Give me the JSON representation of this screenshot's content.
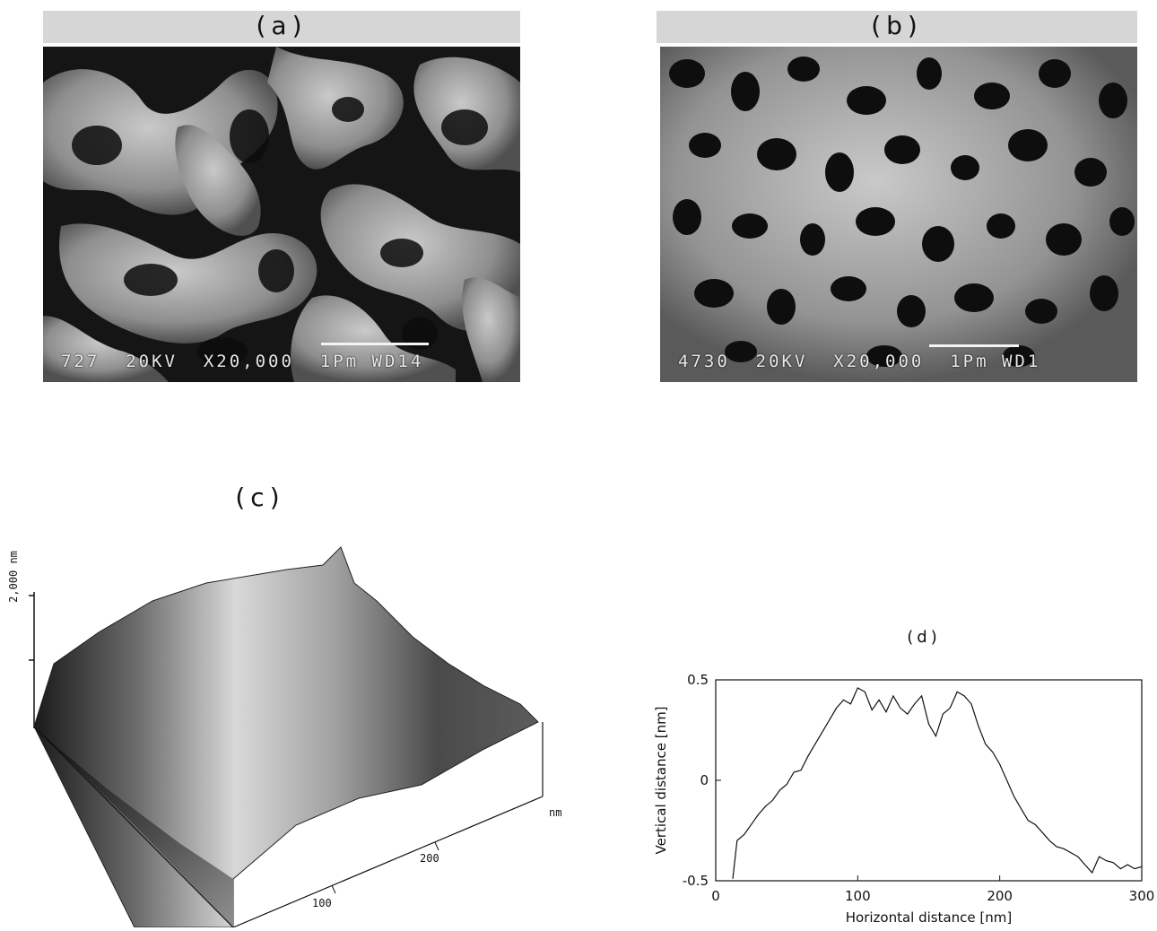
{
  "figure": {
    "panel_a": {
      "label": "(a)",
      "sem_caption": "727  20KV  X20,000  1Pm WD14"
    },
    "panel_b": {
      "label": "(b)",
      "sem_caption": "4730  20KV  X20,000  1Pm WD1"
    },
    "panel_c": {
      "label": "(c)",
      "z_label": "2,000 nm",
      "x_unit": "nm",
      "x_ticks": [
        "100",
        "200"
      ]
    },
    "panel_d": {
      "label": "(d)"
    }
  },
  "chart_data": {
    "type": "line",
    "xlabel": "Horizontal distance [nm]",
    "ylabel": "Vertical distance [nm]",
    "xlim": [
      0,
      300
    ],
    "ylim": [
      -0.5,
      0.5
    ],
    "xticks": [
      0,
      100,
      200,
      300
    ],
    "yticks": [
      -0.5,
      0,
      0.5
    ],
    "grid": false,
    "series": [
      {
        "x": [
          12,
          15,
          20,
          25,
          30,
          35,
          40,
          45,
          50,
          55,
          60,
          65,
          70,
          75,
          80,
          85,
          90,
          95,
          100,
          105,
          110,
          115,
          120,
          125,
          130,
          135,
          140,
          145,
          150,
          155,
          160,
          165,
          170,
          175,
          180,
          185,
          190,
          195,
          200,
          205,
          210,
          215,
          220,
          225,
          230,
          235,
          240,
          245,
          250,
          255,
          260,
          265,
          270,
          275,
          280,
          285,
          290,
          295,
          300
        ],
        "y": [
          -0.49,
          -0.3,
          -0.27,
          -0.22,
          -0.17,
          -0.13,
          -0.1,
          -0.05,
          -0.02,
          0.04,
          0.05,
          0.12,
          0.18,
          0.24,
          0.3,
          0.36,
          0.4,
          0.38,
          0.46,
          0.44,
          0.35,
          0.4,
          0.34,
          0.42,
          0.36,
          0.33,
          0.38,
          0.42,
          0.28,
          0.22,
          0.33,
          0.36,
          0.44,
          0.42,
          0.38,
          0.27,
          0.18,
          0.14,
          0.08,
          0.0,
          -0.08,
          -0.14,
          -0.2,
          -0.22,
          -0.26,
          -0.3,
          -0.33,
          -0.34,
          -0.36,
          -0.38,
          -0.42,
          -0.46,
          -0.38,
          -0.4,
          -0.41,
          -0.44,
          -0.42,
          -0.44,
          -0.43
        ]
      }
    ]
  }
}
